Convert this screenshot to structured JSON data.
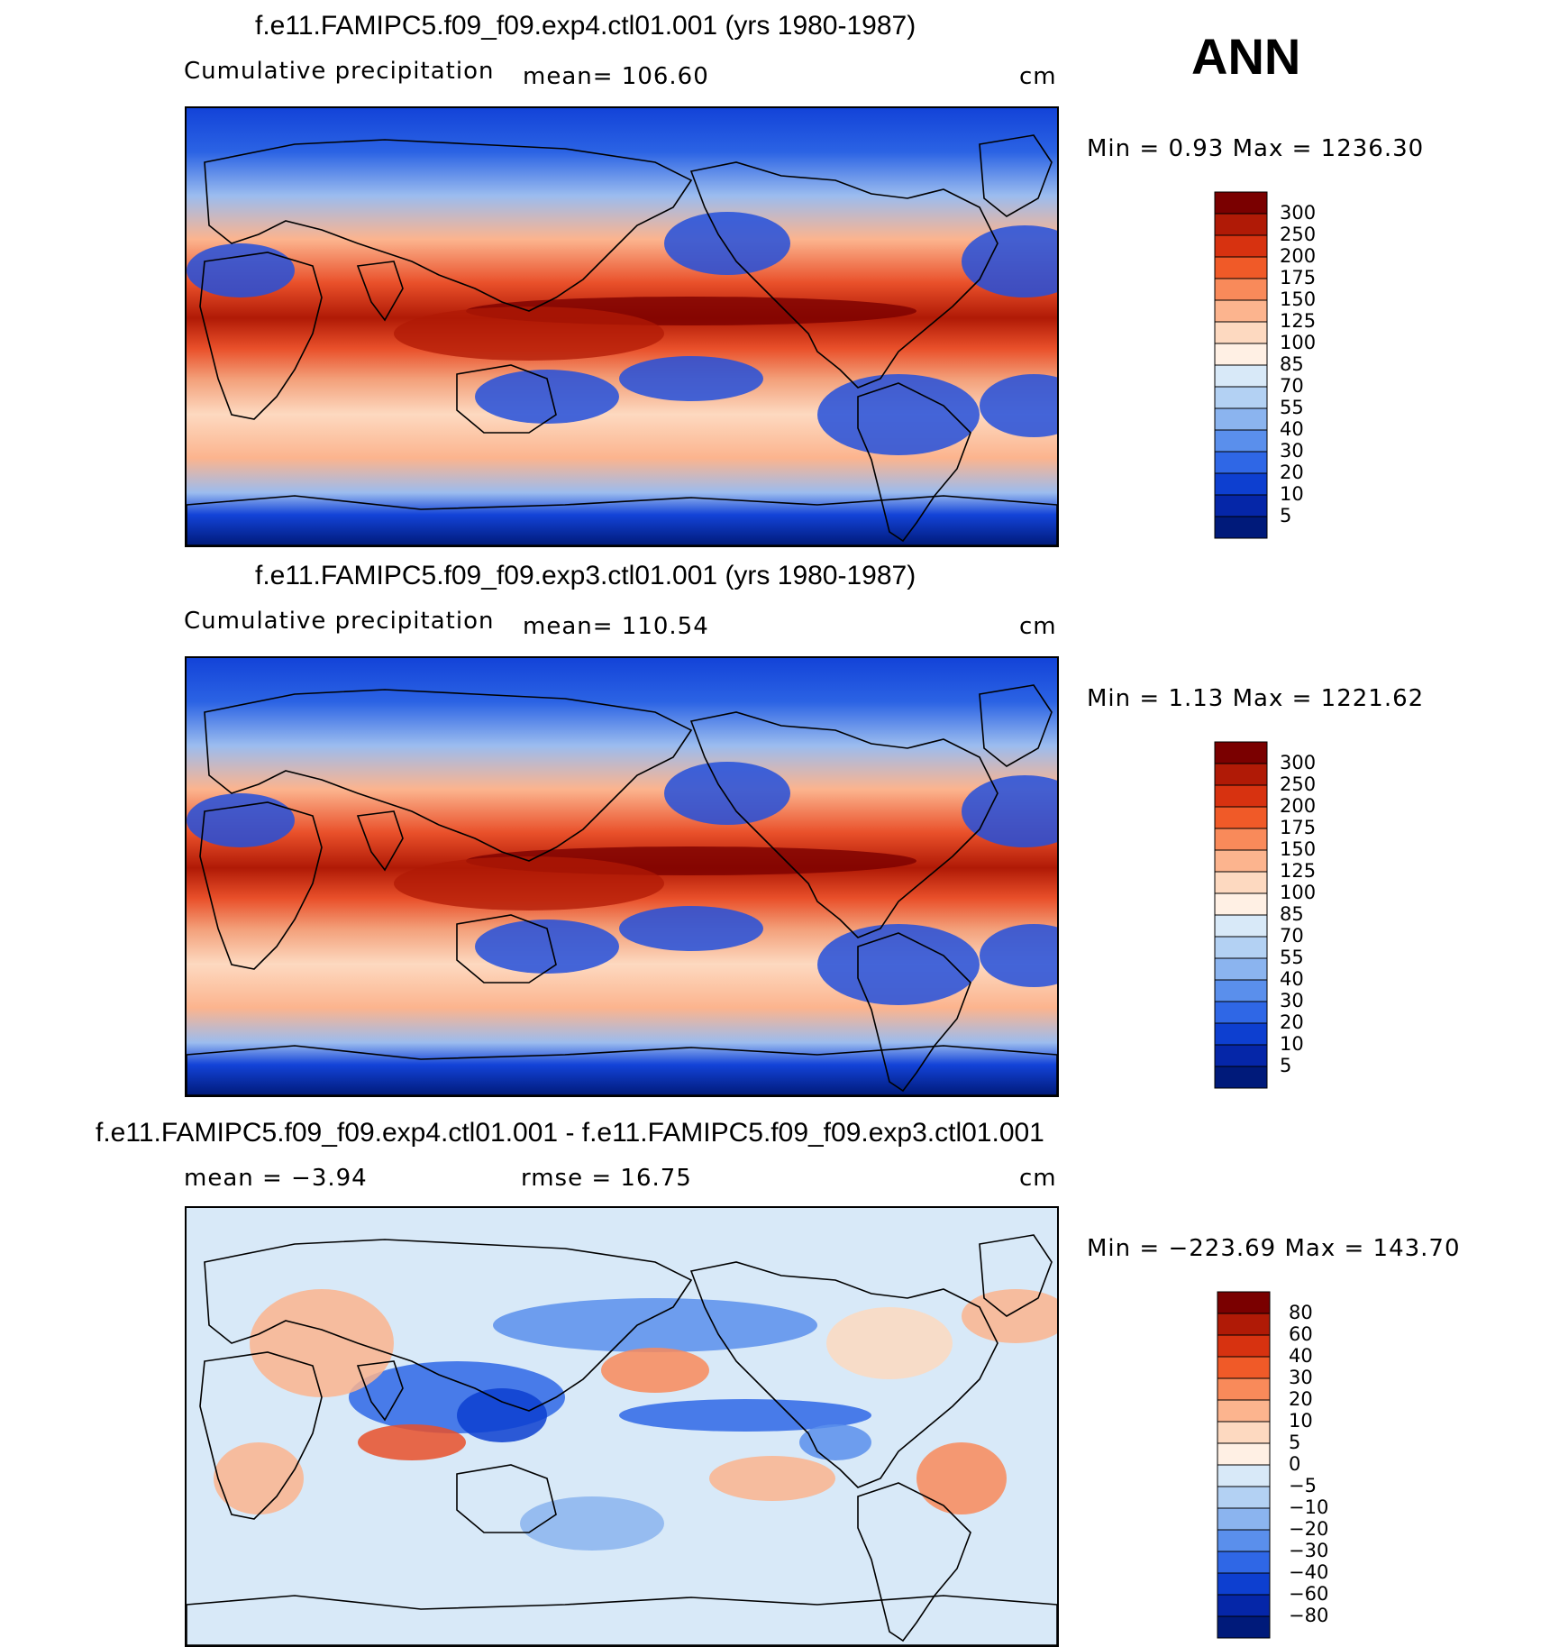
{
  "season": "ANN",
  "units": "cm",
  "panels": [
    {
      "title": "f.e11.FAMIPC5.f09_f09.exp4.ctl01.001 (yrs 1980-1987)",
      "variable": "Cumulative precipitation",
      "stat1": "mean=  106.60",
      "stat2": "",
      "units": "cm",
      "minmax": "Min =     0.93  Max =  1236.30"
    },
    {
      "title": "f.e11.FAMIPC5.f09_f09.exp3.ctl01.001 (yrs 1980-1987)",
      "variable": "Cumulative precipitation",
      "stat1": "mean=  110.54",
      "stat2": "",
      "units": "cm",
      "minmax": "Min =     1.13  Max =  1221.62"
    },
    {
      "title": "f.e11.FAMIPC5.f09_f09.exp4.ctl01.001 - f.e11.FAMIPC5.f09_f09.exp3.ctl01.001",
      "variable": "",
      "stat1": "mean =    −3.94",
      "stat2": "rmse =    16.75",
      "units": "cm",
      "minmax": "Min =  −223.69  Max =  143.70"
    }
  ],
  "chart_data": [
    {
      "type": "heatmap",
      "title": "f.e11.FAMIPC5.f09_f09.exp4.ctl01.001 (yrs 1980-1987)",
      "variable": "Cumulative precipitation",
      "mean": 106.6,
      "min": 0.93,
      "max": 1236.3,
      "units": "cm",
      "colorbar_levels": [
        "300",
        "250",
        "200",
        "175",
        "150",
        "125",
        "100",
        "85",
        "70",
        "55",
        "40",
        "30",
        "20",
        "10",
        "5"
      ],
      "colorbar_colors": [
        "#7a0000",
        "#b01a06",
        "#d73210",
        "#f05a28",
        "#f98a5a",
        "#fcb48e",
        "#fdd9c0",
        "#fff0e4",
        "#d8e9f8",
        "#b3d1f3",
        "#8bb4ef",
        "#5a8fec",
        "#2f67e6",
        "#0d3fd0",
        "#0526a8",
        "#001a7a"
      ]
    },
    {
      "type": "heatmap",
      "title": "f.e11.FAMIPC5.f09_f09.exp3.ctl01.001 (yrs 1980-1987)",
      "variable": "Cumulative precipitation",
      "mean": 110.54,
      "min": 1.13,
      "max": 1221.62,
      "units": "cm",
      "colorbar_levels": [
        "300",
        "250",
        "200",
        "175",
        "150",
        "125",
        "100",
        "85",
        "70",
        "55",
        "40",
        "30",
        "20",
        "10",
        "5"
      ],
      "colorbar_colors": [
        "#7a0000",
        "#b01a06",
        "#d73210",
        "#f05a28",
        "#f98a5a",
        "#fcb48e",
        "#fdd9c0",
        "#fff0e4",
        "#d8e9f8",
        "#b3d1f3",
        "#8bb4ef",
        "#5a8fec",
        "#2f67e6",
        "#0d3fd0",
        "#0526a8",
        "#001a7a"
      ]
    },
    {
      "type": "heatmap",
      "title": "f.e11.FAMIPC5.f09_f09.exp4.ctl01.001 - f.e11.FAMIPC5.f09_f09.exp3.ctl01.001",
      "mean": -3.94,
      "rmse": 16.75,
      "min": -223.69,
      "max": 143.7,
      "units": "cm",
      "colorbar_levels": [
        "80",
        "60",
        "40",
        "30",
        "20",
        "10",
        "5",
        "0",
        "−5",
        "−10",
        "−20",
        "−30",
        "−40",
        "−60",
        "−80"
      ],
      "colorbar_colors": [
        "#7a0000",
        "#b01a06",
        "#d73210",
        "#f05a28",
        "#f98a5a",
        "#fcb48e",
        "#fdd9c0",
        "#fff0e4",
        "#d8e9f8",
        "#b3d1f3",
        "#8bb4ef",
        "#5a8fec",
        "#2f67e6",
        "#0d3fd0",
        "#0526a8",
        "#001a7a"
      ]
    }
  ]
}
